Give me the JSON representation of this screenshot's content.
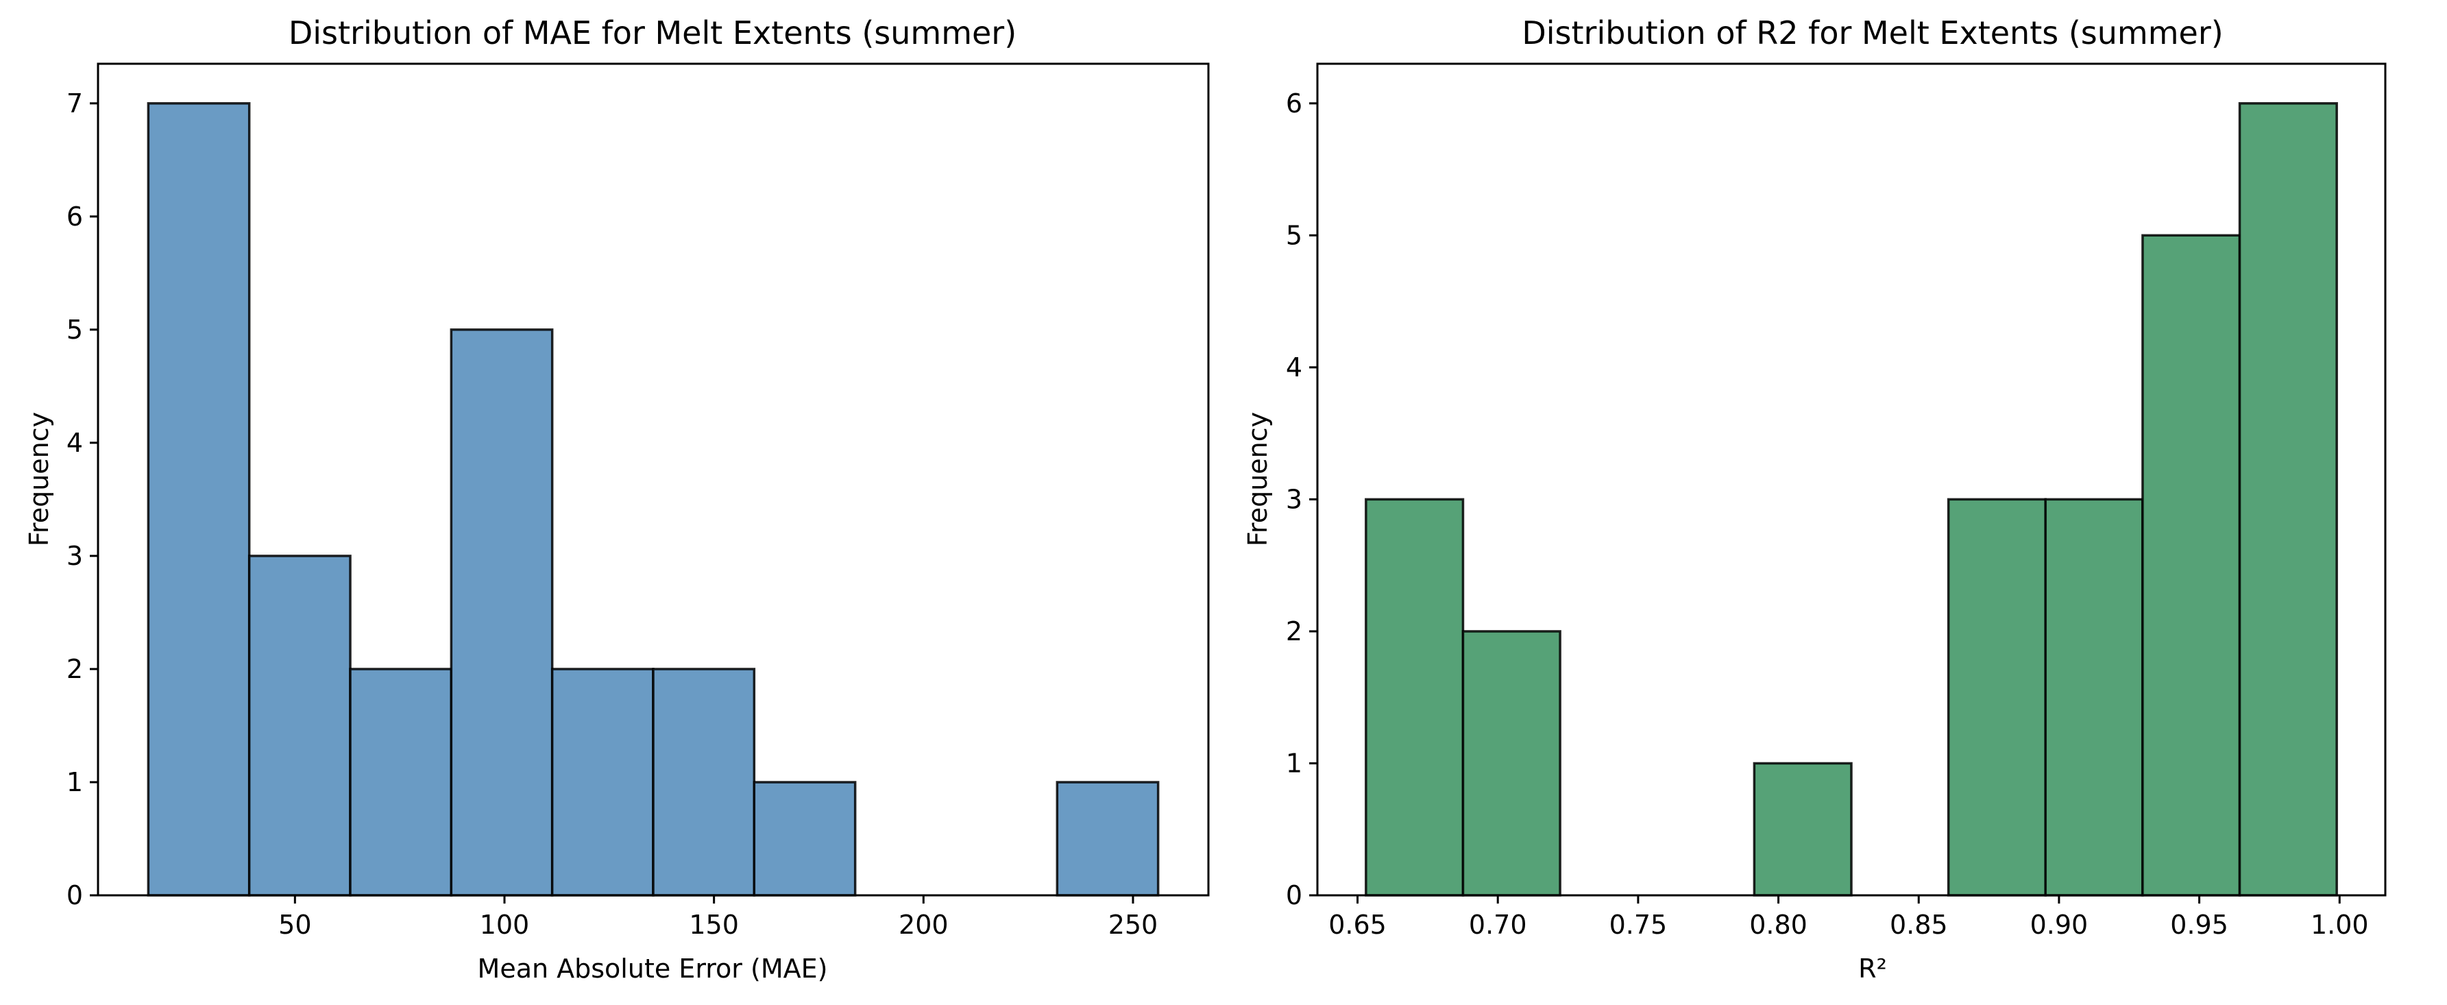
{
  "chart_data": [
    {
      "type": "bar",
      "subtype": "histogram",
      "title": "Distribution of MAE for Melt Extents (summer)",
      "xlabel": "Mean Absolute Error (MAE)",
      "ylabel": "Frequency",
      "color": "#6a9bc4",
      "edge_color": "#1a1a1a",
      "grid": false,
      "bins": [
        {
          "x0": 15,
          "x1": 39.1,
          "count": 7
        },
        {
          "x0": 39.1,
          "x1": 63.2,
          "count": 3
        },
        {
          "x0": 63.2,
          "x1": 87.3,
          "count": 2
        },
        {
          "x0": 87.3,
          "x1": 111.4,
          "count": 5
        },
        {
          "x0": 111.4,
          "x1": 135.5,
          "count": 2
        },
        {
          "x0": 135.5,
          "x1": 159.6,
          "count": 2
        },
        {
          "x0": 159.6,
          "x1": 183.7,
          "count": 1
        },
        {
          "x0": 183.7,
          "x1": 207.8,
          "count": 0
        },
        {
          "x0": 207.8,
          "x1": 231.9,
          "count": 0
        },
        {
          "x0": 231.9,
          "x1": 256,
          "count": 1
        }
      ],
      "xlim": [
        3,
        268
      ],
      "ylim": [
        0,
        7.35
      ],
      "xticks": [
        50,
        100,
        150,
        200,
        250
      ],
      "xtick_labels": [
        "50",
        "100",
        "150",
        "200",
        "250"
      ],
      "yticks": [
        0,
        1,
        2,
        3,
        4,
        5,
        6,
        7
      ],
      "ytick_labels": [
        "0",
        "1",
        "2",
        "3",
        "4",
        "5",
        "6",
        "7"
      ]
    },
    {
      "type": "bar",
      "subtype": "histogram",
      "title": "Distribution of R2 for Melt Extents (summer)",
      "xlabel": "R²",
      "ylabel": "Frequency",
      "color": "#56a277",
      "edge_color": "#1a1a1a",
      "grid": false,
      "bins": [
        {
          "x0": 0.653,
          "x1": 0.6876,
          "count": 3
        },
        {
          "x0": 0.6876,
          "x1": 0.7222,
          "count": 2
        },
        {
          "x0": 0.7222,
          "x1": 0.7568,
          "count": 0
        },
        {
          "x0": 0.7568,
          "x1": 0.7914,
          "count": 0
        },
        {
          "x0": 0.7914,
          "x1": 0.826,
          "count": 1
        },
        {
          "x0": 0.826,
          "x1": 0.8606,
          "count": 0
        },
        {
          "x0": 0.8606,
          "x1": 0.8952,
          "count": 3
        },
        {
          "x0": 0.8952,
          "x1": 0.9298,
          "count": 3
        },
        {
          "x0": 0.9298,
          "x1": 0.9644,
          "count": 5
        },
        {
          "x0": 0.9644,
          "x1": 0.999,
          "count": 6
        }
      ],
      "xlim": [
        0.6357,
        1.0163
      ],
      "ylim": [
        0,
        6.3
      ],
      "xticks": [
        0.65,
        0.7,
        0.75,
        0.8,
        0.85,
        0.9,
        0.95,
        1.0
      ],
      "xtick_labels": [
        "0.65",
        "0.70",
        "0.75",
        "0.80",
        "0.85",
        "0.90",
        "0.95",
        "1.00"
      ],
      "yticks": [
        0,
        1,
        2,
        3,
        4,
        5,
        6
      ],
      "ytick_labels": [
        "0",
        "1",
        "2",
        "3",
        "4",
        "5",
        "6"
      ]
    }
  ]
}
